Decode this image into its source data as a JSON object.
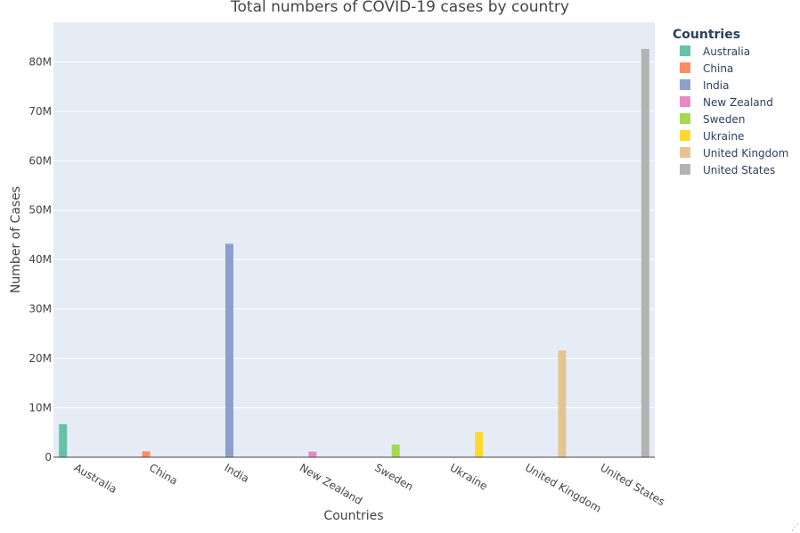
{
  "chart_data": {
    "type": "bar",
    "title": "Total numbers of COVID-19 cases by country",
    "xlabel": "Countries",
    "ylabel": "Number of Cases",
    "categories": [
      "Australia",
      "China",
      "India",
      "New Zealand",
      "Sweden",
      "Ukraine",
      "United Kingdom",
      "United States"
    ],
    "series": [
      {
        "name": "Australia",
        "color": "#66c2a5",
        "values": [
          6700000,
          null,
          null,
          null,
          null,
          null,
          null,
          null
        ]
      },
      {
        "name": "China",
        "color": "#fc8d62",
        "values": [
          null,
          1200000,
          null,
          null,
          null,
          null,
          null,
          null
        ]
      },
      {
        "name": "India",
        "color": "#8da0cb",
        "values": [
          null,
          null,
          43200000,
          null,
          null,
          null,
          null,
          null
        ]
      },
      {
        "name": "New Zealand",
        "color": "#e78ac3",
        "values": [
          null,
          null,
          null,
          1150000,
          null,
          null,
          null,
          null
        ]
      },
      {
        "name": "Sweden",
        "color": "#a6d854",
        "values": [
          null,
          null,
          null,
          null,
          2600000,
          null,
          null,
          null
        ]
      },
      {
        "name": "Ukraine",
        "color": "#ffd92f",
        "values": [
          null,
          null,
          null,
          null,
          null,
          5100000,
          null,
          null
        ]
      },
      {
        "name": "United Kingdom",
        "color": "#e5c494",
        "values": [
          null,
          null,
          null,
          null,
          null,
          null,
          21600000,
          null
        ]
      },
      {
        "name": "United States",
        "color": "#b3b3b3",
        "values": [
          null,
          null,
          null,
          null,
          null,
          null,
          null,
          82600000
        ]
      }
    ],
    "ylim": [
      0,
      88000000
    ],
    "yticks": [
      0,
      10000000,
      20000000,
      30000000,
      40000000,
      50000000,
      60000000,
      70000000,
      80000000
    ],
    "ytick_labels": [
      "0",
      "10M",
      "20M",
      "30M",
      "40M",
      "50M",
      "60M",
      "70M",
      "80M"
    ],
    "legend_title": "Countries",
    "legend_position": "right",
    "grid": true,
    "plot_bgcolor": "#e5ecf6"
  }
}
